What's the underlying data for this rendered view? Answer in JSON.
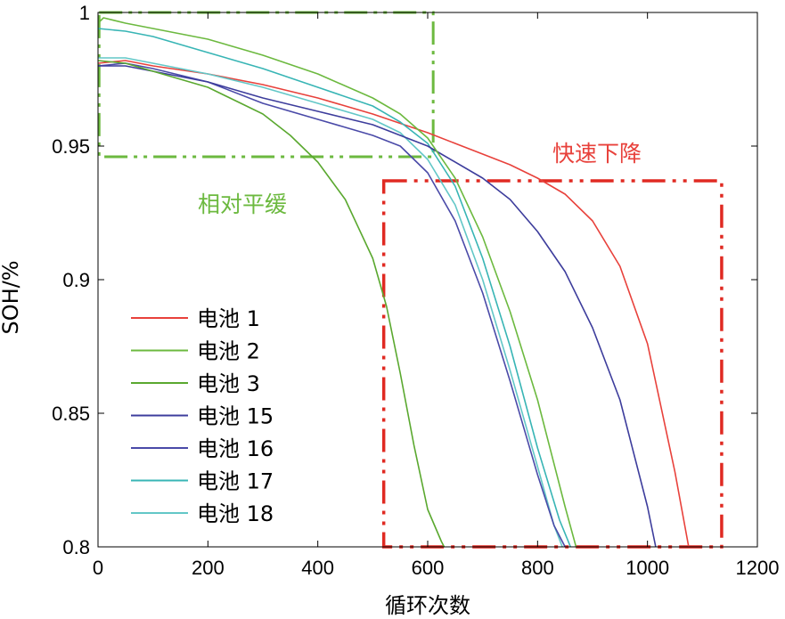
{
  "chart_data": {
    "type": "line",
    "title": "",
    "xlabel": "循环次数",
    "ylabel": "SOH/%",
    "xlim": [
      0,
      1200
    ],
    "ylim": [
      0.8,
      1.0
    ],
    "xticks": [
      0,
      200,
      400,
      600,
      800,
      1000,
      1200
    ],
    "xtick_labels": [
      "0",
      "200",
      "400",
      "600",
      "800",
      "1000",
      "1200"
    ],
    "yticks": [
      0.8,
      0.85,
      0.9,
      0.95,
      1.0
    ],
    "ytick_labels": [
      "0.8",
      "0.85",
      "0.9",
      "0.95",
      "1"
    ],
    "grid": false,
    "legend_position": "left",
    "series": [
      {
        "name": "电池 1",
        "color": "#e8413b",
        "x": [
          0,
          50,
          100,
          200,
          300,
          400,
          500,
          600,
          650,
          700,
          750,
          800,
          850,
          900,
          950,
          1000,
          1050,
          1075
        ],
        "y": [
          0.981,
          0.982,
          0.98,
          0.977,
          0.973,
          0.968,
          0.962,
          0.955,
          0.951,
          0.947,
          0.943,
          0.938,
          0.932,
          0.922,
          0.905,
          0.876,
          0.828,
          0.8
        ]
      },
      {
        "name": "电池 2",
        "color": "#6cb93f",
        "x": [
          0,
          10,
          50,
          100,
          200,
          300,
          400,
          500,
          550,
          600,
          650,
          700,
          750,
          800,
          850,
          870
        ],
        "y": [
          0.996,
          0.998,
          0.996,
          0.994,
          0.99,
          0.984,
          0.977,
          0.968,
          0.962,
          0.953,
          0.938,
          0.916,
          0.888,
          0.855,
          0.815,
          0.8
        ]
      },
      {
        "name": "电池 3",
        "color": "#5aa82f",
        "x": [
          0,
          50,
          100,
          200,
          300,
          350,
          400,
          450,
          500,
          525,
          550,
          575,
          600,
          625,
          630
        ],
        "y": [
          0.982,
          0.981,
          0.978,
          0.972,
          0.962,
          0.954,
          0.944,
          0.93,
          0.908,
          0.89,
          0.865,
          0.838,
          0.814,
          0.802,
          0.8
        ]
      },
      {
        "name": "电池 15",
        "color": "#3d3d9c",
        "x": [
          0,
          50,
          100,
          200,
          300,
          400,
          500,
          600,
          700,
          750,
          800,
          850,
          900,
          950,
          1000,
          1015
        ],
        "y": [
          0.98,
          0.98,
          0.978,
          0.974,
          0.968,
          0.963,
          0.958,
          0.95,
          0.938,
          0.93,
          0.918,
          0.903,
          0.882,
          0.855,
          0.815,
          0.8
        ]
      },
      {
        "name": "电池 16",
        "color": "#4a4aa8",
        "x": [
          0,
          50,
          100,
          200,
          300,
          400,
          500,
          550,
          600,
          650,
          700,
          750,
          800,
          830,
          850
        ],
        "y": [
          0.98,
          0.981,
          0.979,
          0.974,
          0.966,
          0.96,
          0.954,
          0.95,
          0.94,
          0.922,
          0.895,
          0.862,
          0.827,
          0.808,
          0.8
        ]
      },
      {
        "name": "电池 17",
        "color": "#38b5b5",
        "x": [
          0,
          50,
          100,
          200,
          300,
          400,
          500,
          550,
          600,
          650,
          700,
          750,
          800,
          840,
          860
        ],
        "y": [
          0.994,
          0.993,
          0.991,
          0.985,
          0.979,
          0.972,
          0.965,
          0.959,
          0.951,
          0.935,
          0.908,
          0.875,
          0.837,
          0.81,
          0.8
        ]
      },
      {
        "name": "电池 18",
        "color": "#62c7c7",
        "x": [
          0,
          50,
          100,
          200,
          300,
          400,
          500,
          550,
          600,
          650,
          700,
          750,
          800,
          830,
          845
        ],
        "y": [
          0.983,
          0.983,
          0.981,
          0.977,
          0.972,
          0.966,
          0.96,
          0.955,
          0.945,
          0.928,
          0.9,
          0.866,
          0.83,
          0.808,
          0.8
        ]
      }
    ],
    "annotations": [
      {
        "text": "相对平缓",
        "color": "#6cb93f",
        "box_color": "#6cb93f",
        "box_x": [
          2,
          610
        ],
        "box_y": [
          0.946,
          1.0
        ]
      },
      {
        "text": "快速下降",
        "color": "#e8413b",
        "box_color": "#e02a22",
        "box_x": [
          520,
          1135
        ],
        "box_y": [
          0.8,
          0.937
        ]
      }
    ]
  }
}
